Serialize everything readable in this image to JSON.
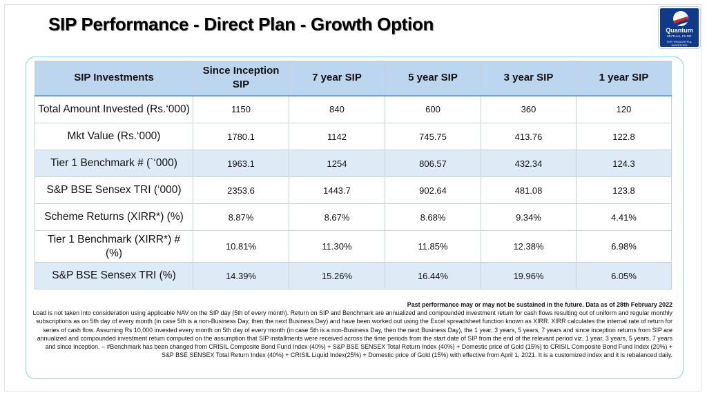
{
  "title": "SIP Performance - Direct Plan - Growth Option",
  "logo": {
    "name": "Quantum",
    "subtitle": "MUTUAL FUND",
    "tagline": "FOR THOUGHTFUL INVESTORS"
  },
  "table": {
    "headers": [
      "SIP Investments",
      "Since Inception SIP",
      "7 year SIP",
      "5 year SIP",
      "3 year SIP",
      "1 year SIP"
    ],
    "rows": [
      {
        "label": "Total Amount Invested (Rs.‘000)",
        "values": [
          "1150",
          "840",
          "600",
          "360",
          "120"
        ]
      },
      {
        "label": "Mkt Value (Rs.‘000)",
        "values": [
          "1780.1",
          "1142",
          "745.75",
          "413.76",
          "122.8"
        ]
      },
      {
        "label": "Tier 1 Benchmark # (`‘000)",
        "values": [
          "1963.1",
          "1254",
          "806.57",
          "432.34",
          "124.3"
        ]
      },
      {
        "label": "S&P BSE Sensex TRI (‘000)",
        "values": [
          "2353.6",
          "1443.7",
          "902.64",
          "481.08",
          "123.8"
        ]
      },
      {
        "label": "Scheme Returns (XIRR*) (%)",
        "values": [
          "8.87%",
          "8.67%",
          "8.68%",
          "9.34%",
          "4.41%"
        ]
      },
      {
        "label": "Tier 1 Benchmark (XIRR*) # (%)",
        "values": [
          "10.81%",
          "11.30%",
          "11.85%",
          "12.38%",
          "6.98%"
        ]
      },
      {
        "label": "S&P BSE Sensex TRI (%)",
        "values": [
          "14.39%",
          "15.26%",
          "16.44%",
          "19.96%",
          "6.05%"
        ]
      }
    ]
  },
  "disclaimer": {
    "heading": "Past performance may or may not be sustained in the future. Data as of 28th February 2022",
    "body": "Load is not taken into consideration using applicable NAV on the SIP day (5th of every month). Return on SIP and Benchmark are annualized and compounded investment return for cash flows resulting out of uniform and regular monthly subscriptions as on 5th day of every month (in case 5th is a non-Business Day, then the next Business Day) and have been worked out using the Excel spreadsheet function known as XIRR. XIRR calculates the internal rate of return for series of cash flow. Assuming Rs 10,000 invested every month on 5th day of every month (in case 5th is a non-Business Day, then the next Business Day), the 1 year, 3 years, 5 years, 7 years and since inception returns from SIP are annualized and compounded investment return computed on the assumption that SIP installments were received across the time periods from the start date of SIP from the end of the relevant period viz. 1 year, 3 years, 5 years, 7 years and since Inception. – #Benchmark has been changed from CRISIL Composite Bond Fund Index (40%) + S&P BSE SENSEX Total Return Index (40%) + Domestic price of Gold (15%) to CRISIL Composite Bond Fund Index (20%) + S&P BSE SENSEX Total Return Index (40%) + CRISIL Liquid Index(25%) + Domestic price of Gold (15%) with effective from April 1, 2021. It is a customized index and it is rebalanced daily."
  },
  "colors": {
    "header_fill": "#bcd6ef",
    "shaded_row": "#dfeaf7",
    "card_border": "#8fcde8",
    "logo_blue": "#0f3a8c",
    "logo_red": "#d9252a"
  }
}
